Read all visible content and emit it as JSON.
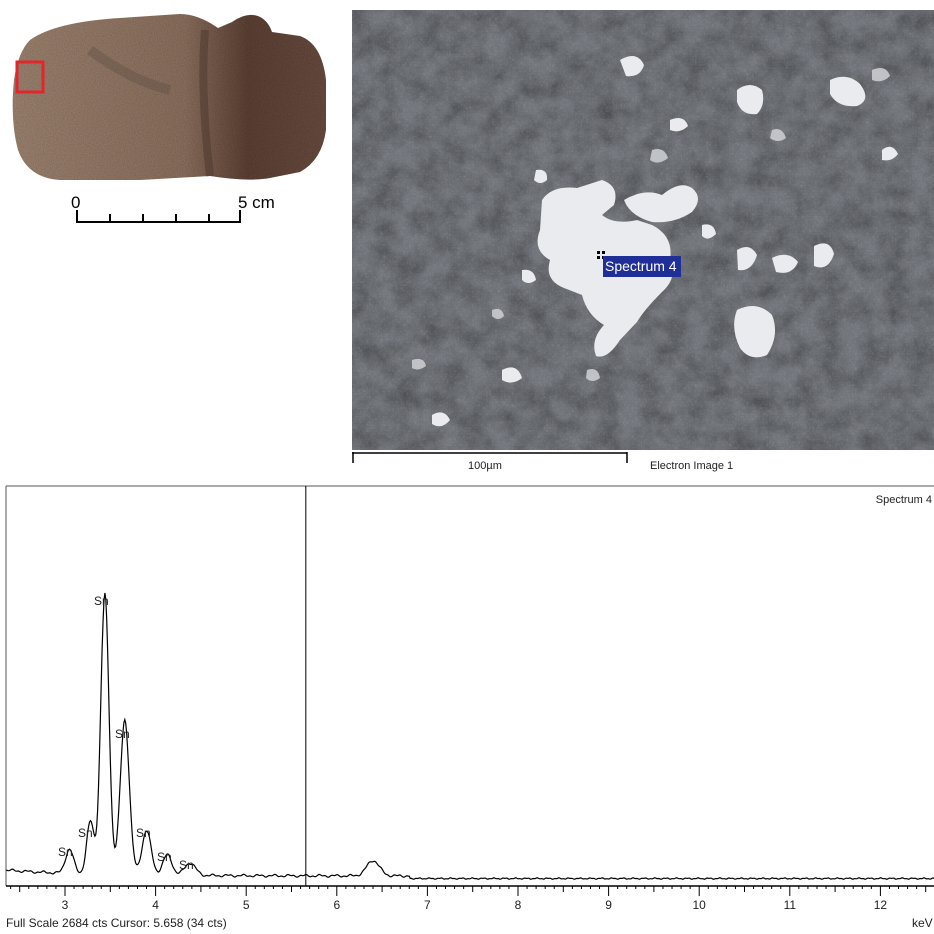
{
  "artifact_photo": {
    "scale_start_label": "0",
    "scale_end_label": "5 cm",
    "highlight_color": "#e2262b"
  },
  "sem_image": {
    "spectrum_marker_label": "Spectrum 4",
    "scale_bar_label": "100µm",
    "image_title": "Electron Image 1",
    "label_color": "#1f2f97"
  },
  "spectrum": {
    "title": "Spectrum 4",
    "x_unit": "keV",
    "status": "Full Scale 2684 cts Cursor: 5.658  (34 cts)",
    "x_ticks": [
      "3",
      "4",
      "5",
      "6",
      "7",
      "8",
      "9",
      "10",
      "11",
      "12"
    ],
    "peak_labels": [
      "Sn",
      "Sn",
      "Sn",
      "Sn",
      "Sn",
      "Sn",
      "Sn"
    ],
    "chart_data": {
      "type": "line",
      "x_range_kev": [
        2.35,
        12.6
      ],
      "full_scale_counts": 2684,
      "cursor_kev": 5.658,
      "cursor_counts": 34,
      "peaks": [
        {
          "element": "Sn",
          "kev": 3.05,
          "counts": 165
        },
        {
          "element": "Sn",
          "kev": 3.28,
          "counts": 360
        },
        {
          "element": "Sn",
          "kev": 3.44,
          "counts": 1920
        },
        {
          "element": "Sn",
          "kev": 3.66,
          "counts": 1060
        },
        {
          "element": "Sn",
          "kev": 3.9,
          "counts": 305
        },
        {
          "element": "Sn",
          "kev": 4.13,
          "counts": 140
        },
        {
          "element": "Sn",
          "kev": 4.38,
          "counts": 85
        },
        {
          "element": "",
          "kev": 6.4,
          "counts": 105
        }
      ]
    }
  }
}
